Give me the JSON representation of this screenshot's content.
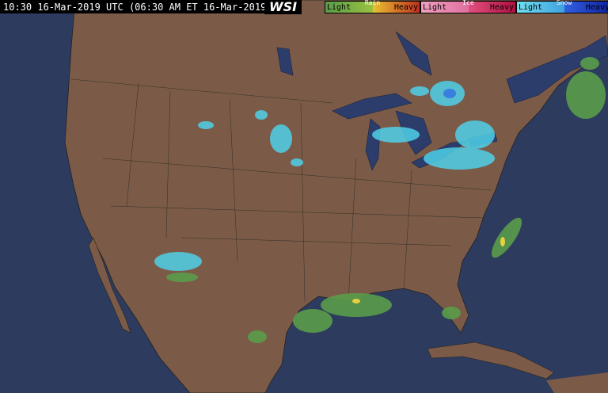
{
  "header": {
    "timestamp": "10:30 16-Mar-2019 UTC (06:30 AM ET 16-Mar-2019)",
    "brand": "WSI"
  },
  "legend": [
    {
      "name": "Rain",
      "low": "Light",
      "high": "Heavy"
    },
    {
      "name": "Ice",
      "low": "Light",
      "high": "Heavy"
    },
    {
      "name": "Snow",
      "low": "Light",
      "high": "Heavy"
    }
  ]
}
